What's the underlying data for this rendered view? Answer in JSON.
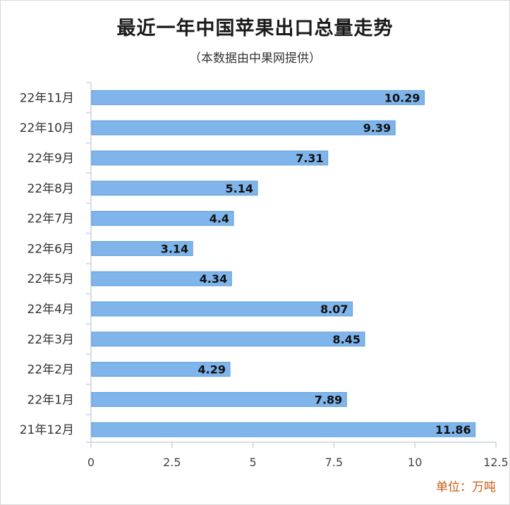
{
  "chart_data": {
    "type": "bar",
    "orientation": "horizontal",
    "title": "最近一年中国苹果出口总量走势",
    "subtitle": "（本数据由中果网提供）",
    "unit_label": "单位：万吨",
    "categories": [
      "22年11月",
      "22年10月",
      "22年9月",
      "22年8月",
      "22年7月",
      "22年6月",
      "22年5月",
      "22年4月",
      "22年3月",
      "22年2月",
      "22年1月",
      "21年12月"
    ],
    "values": [
      10.29,
      9.39,
      7.31,
      5.14,
      4.4,
      3.14,
      4.34,
      8.07,
      8.45,
      4.29,
      7.89,
      11.86
    ],
    "value_labels": [
      "10.29",
      "9.39",
      "7.31",
      "5.14",
      "4.4",
      "3.14",
      "4.34",
      "8.07",
      "8.45",
      "4.29",
      "7.89",
      "11.86"
    ],
    "xlim": [
      0,
      12.5
    ],
    "x_ticks": [
      0,
      2.5,
      5,
      7.5,
      10,
      12.5
    ],
    "x_tick_labels": [
      "0",
      "2.5",
      "5",
      "7.5",
      "10",
      "12.5"
    ],
    "xlabel": "",
    "ylabel": "",
    "grid": false,
    "legend": "none",
    "colors": {
      "bar": "#7fb5ea",
      "bar_edge": "#5b9bd8",
      "axis": "#c9d3e0",
      "unit": "#c55a11"
    }
  }
}
